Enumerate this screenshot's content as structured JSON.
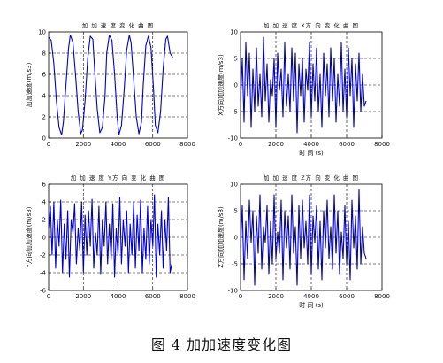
{
  "caption": "图 4  加加速度变化图",
  "chart_data": [
    {
      "type": "line",
      "title": "加 加 速 度 变 化 曲 图",
      "xlabel": "",
      "ylabel": "加加速度(m/s3)",
      "xlim": [
        0,
        8000
      ],
      "ylim": [
        0,
        10
      ],
      "xticks": [
        "0",
        "2000",
        "4000",
        "6000",
        "8000"
      ],
      "yticks": [
        "0",
        "2",
        "4",
        "6",
        "8",
        "10"
      ],
      "grid": "dashed",
      "color": "#0000cc",
      "series": [
        {
          "x": [
            0,
            150,
            300,
            450,
            600,
            750,
            850,
            1000,
            1150,
            1250,
            1400,
            1550,
            1700,
            1850,
            1950,
            2100,
            2250,
            2400,
            2550,
            2650,
            2800,
            2950,
            3100,
            3250,
            3350,
            3500,
            3650,
            3800,
            3950,
            4050,
            4200,
            4350,
            4500,
            4650,
            4750,
            4900,
            5050,
            5200,
            5350,
            5450,
            5600,
            5750,
            5900,
            6050,
            6150,
            6300,
            6450,
            6600,
            6750,
            6850,
            7000,
            7150
          ],
          "values": [
            9.5,
            9.2,
            7.0,
            3.5,
            1.0,
            0.3,
            1.5,
            5.0,
            8.5,
            9.7,
            9.0,
            6.0,
            2.5,
            0.4,
            0.8,
            3.5,
            7.5,
            9.6,
            9.3,
            6.5,
            2.8,
            0.5,
            1.0,
            4.0,
            8.0,
            9.7,
            9.2,
            6.0,
            2.0,
            0.3,
            1.2,
            4.5,
            8.3,
            9.7,
            9.0,
            5.5,
            2.0,
            0.4,
            1.5,
            5.0,
            8.7,
            9.6,
            8.5,
            4.5,
            1.2,
            0.5,
            2.5,
            6.5,
            9.3,
            9.6,
            8.0,
            7.6
          ]
        }
      ]
    },
    {
      "type": "line",
      "title": "加 加 速 度 X方 向 变 化 曲 图",
      "xlabel": "时 间 (s)",
      "ylabel": "X方向加加速度(m/s3)",
      "xlim": [
        0,
        8000
      ],
      "ylim": [
        -10,
        10
      ],
      "xticks": [
        "0",
        "2000",
        "4000",
        "6000",
        "8000"
      ],
      "yticks": [
        "-10",
        "-5",
        "0",
        "5",
        "10"
      ],
      "grid": "dashed",
      "color": "#0000cc",
      "series": [
        {
          "x": [
            0,
            100,
            200,
            300,
            400,
            500,
            600,
            700,
            800,
            900,
            1000,
            1100,
            1200,
            1300,
            1400,
            1500,
            1600,
            1700,
            1800,
            1900,
            2000,
            2100,
            2200,
            2300,
            2400,
            2500,
            2600,
            2700,
            2800,
            2900,
            3000,
            3100,
            3200,
            3300,
            3400,
            3500,
            3600,
            3700,
            3800,
            3900,
            4000,
            4100,
            4200,
            4300,
            4400,
            4500,
            4600,
            4700,
            4800,
            4900,
            5000,
            5100,
            5200,
            5300,
            5400,
            5500,
            5600,
            5700,
            5800,
            5900,
            6000,
            6100,
            6200,
            6300,
            6400,
            6500,
            6600,
            6700,
            6800,
            6900,
            7000,
            7100
          ],
          "values": [
            -3,
            5,
            -7,
            8,
            -2,
            6,
            -8,
            3,
            -5,
            7,
            -4,
            2,
            -6,
            9,
            -3,
            4,
            -7,
            1,
            -2,
            5,
            -8,
            6,
            -1,
            3,
            -6,
            8,
            -4,
            2,
            -5,
            7,
            -3,
            6,
            -9,
            4,
            -2,
            5,
            -7,
            3,
            -1,
            8,
            -6,
            4,
            -3,
            7,
            -5,
            2,
            -8,
            6,
            -2,
            4,
            -6,
            7,
            -3,
            5,
            -7,
            2,
            -4,
            8,
            -5,
            3,
            -6,
            7,
            -2,
            5,
            -8,
            4,
            -3,
            6,
            -5,
            2,
            -4,
            -3
          ]
        }
      ]
    },
    {
      "type": "line",
      "title": "加 加 速 度 Y方 向 变 化 曲 图",
      "xlabel": "",
      "ylabel": "Y方向加加速度(m/s3)",
      "xlim": [
        0,
        8000
      ],
      "ylim": [
        -6,
        6
      ],
      "xticks": [
        "0",
        "2000",
        "4000",
        "6000",
        "8000"
      ],
      "yticks": [
        "-6",
        "-4",
        "-2",
        "0",
        "2",
        "4",
        "6"
      ],
      "grid": "dashed",
      "color": "#0000cc",
      "series": [
        {
          "x": [
            0,
            100,
            200,
            300,
            400,
            500,
            600,
            700,
            800,
            900,
            1000,
            1100,
            1200,
            1300,
            1400,
            1500,
            1600,
            1700,
            1800,
            1900,
            2000,
            2100,
            2200,
            2300,
            2400,
            2500,
            2600,
            2700,
            2800,
            2900,
            3000,
            3100,
            3200,
            3300,
            3400,
            3500,
            3600,
            3700,
            3800,
            3900,
            4000,
            4100,
            4200,
            4300,
            4400,
            4500,
            4600,
            4700,
            4800,
            4900,
            5000,
            5100,
            5200,
            5300,
            5400,
            5500,
            5600,
            5700,
            5800,
            5900,
            6000,
            6100,
            6200,
            6300,
            6400,
            6500,
            6600,
            6700,
            6800,
            6900,
            7000,
            7100
          ],
          "values": [
            1,
            3.5,
            -2,
            4,
            -3.5,
            2,
            -1,
            4.2,
            -4,
            1.5,
            -2.5,
            3,
            -4.5,
            2,
            0.5,
            3.8,
            -3,
            1,
            -1.5,
            4,
            -4,
            2.5,
            -2,
            3,
            -1,
            4.3,
            -3.5,
            0.5,
            -2,
            3.5,
            -4.2,
            2,
            -1,
            4,
            -3,
            1.5,
            -2.5,
            3.8,
            -4.5,
            1,
            -2,
            4.5,
            -3,
            2,
            -1,
            3,
            -4,
            1.5,
            -2,
            4,
            -3.5,
            2.5,
            -1.5,
            4.2,
            -4,
            1,
            -2.5,
            3.5,
            -3,
            2,
            -1,
            4.8,
            -4.5,
            1.5,
            -2,
            3,
            -3.5,
            2,
            -1.5,
            4.5,
            -4,
            -3
          ]
        }
      ]
    },
    {
      "type": "line",
      "title": "加 加 速 度 Z方 向 变 化 曲 图",
      "xlabel": "时 间 (s)",
      "ylabel": "Z方向加加速度(m/s3)",
      "xlim": [
        0,
        8000
      ],
      "ylim": [
        -10,
        10
      ],
      "xticks": [
        "0",
        "2000",
        "4000",
        "6000",
        "8000"
      ],
      "yticks": [
        "-10",
        "-5",
        "0",
        "5",
        "10"
      ],
      "grid": "dashed",
      "color": "#0000cc",
      "series": [
        {
          "x": [
            0,
            100,
            200,
            300,
            400,
            500,
            600,
            700,
            800,
            900,
            1000,
            1100,
            1200,
            1300,
            1400,
            1500,
            1600,
            1700,
            1800,
            1900,
            2000,
            2100,
            2200,
            2300,
            2400,
            2500,
            2600,
            2700,
            2800,
            2900,
            3000,
            3100,
            3200,
            3300,
            3400,
            3500,
            3600,
            3700,
            3800,
            3900,
            4000,
            4100,
            4200,
            4300,
            4400,
            4500,
            4600,
            4700,
            4800,
            4900,
            5000,
            5100,
            5200,
            5300,
            5400,
            5500,
            5600,
            5700,
            5800,
            5900,
            6000,
            6100,
            6200,
            6300,
            6400,
            6500,
            6600,
            6700,
            6800,
            6900,
            7000,
            7100
          ],
          "values": [
            -2,
            6,
            -8,
            3,
            -4,
            7,
            -1,
            5,
            -9,
            4,
            -3,
            8,
            -6,
            2,
            -1,
            6,
            -7,
            3,
            -5,
            8,
            -4,
            1,
            -3,
            7,
            -8,
            5,
            -2,
            4,
            -6,
            8,
            -3,
            2,
            -9,
            6,
            -4,
            7,
            -2,
            3,
            -5,
            8,
            -7,
            4,
            -1,
            6,
            -6,
            3,
            -8,
            5,
            -2,
            7,
            -4,
            2,
            -6,
            8,
            -3,
            5,
            -7,
            1,
            -4,
            6,
            -5,
            3,
            -8,
            7,
            -2,
            4,
            -6,
            9,
            -5,
            2,
            -3,
            -4
          ]
        }
      ]
    }
  ]
}
